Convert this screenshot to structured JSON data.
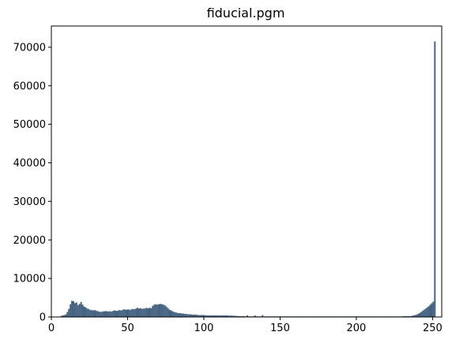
{
  "chart_data": {
    "type": "bar",
    "title": "fiducial.pgm",
    "xlabel": "",
    "ylabel": "",
    "xlim": [
      0,
      256
    ],
    "ylim": [
      0,
      75500
    ],
    "bar_color": "#43617f",
    "grid": false,
    "x_ticks": [
      0,
      50,
      100,
      150,
      200,
      250
    ],
    "y_ticks": [
      0,
      10000,
      20000,
      30000,
      40000,
      50000,
      60000,
      70000
    ],
    "bin_width": 1,
    "bins": [
      [
        0,
        0
      ],
      [
        1,
        0
      ],
      [
        2,
        0
      ],
      [
        3,
        0
      ],
      [
        4,
        0
      ],
      [
        5,
        100
      ],
      [
        6,
        300
      ],
      [
        7,
        400
      ],
      [
        8,
        500
      ],
      [
        9,
        700
      ],
      [
        10,
        1300
      ],
      [
        11,
        2100
      ],
      [
        12,
        3300
      ],
      [
        13,
        4200
      ],
      [
        14,
        4100
      ],
      [
        15,
        3600
      ],
      [
        16,
        3800
      ],
      [
        17,
        3100
      ],
      [
        18,
        3400
      ],
      [
        19,
        3900
      ],
      [
        20,
        3200
      ],
      [
        21,
        2700
      ],
      [
        22,
        2500
      ],
      [
        23,
        2200
      ],
      [
        24,
        2100
      ],
      [
        25,
        1800
      ],
      [
        26,
        1800
      ],
      [
        27,
        1700
      ],
      [
        28,
        1800
      ],
      [
        29,
        1600
      ],
      [
        30,
        1500
      ],
      [
        31,
        1400
      ],
      [
        32,
        1300
      ],
      [
        33,
        1400
      ],
      [
        34,
        1500
      ],
      [
        35,
        1500
      ],
      [
        36,
        1500
      ],
      [
        37,
        1400
      ],
      [
        38,
        1500
      ],
      [
        39,
        1400
      ],
      [
        40,
        1600
      ],
      [
        41,
        1700
      ],
      [
        42,
        1600
      ],
      [
        43,
        1600
      ],
      [
        44,
        1800
      ],
      [
        45,
        1700
      ],
      [
        46,
        1800
      ],
      [
        47,
        2000
      ],
      [
        48,
        1900
      ],
      [
        49,
        1900
      ],
      [
        50,
        2000
      ],
      [
        51,
        1800
      ],
      [
        52,
        2000
      ],
      [
        53,
        2100
      ],
      [
        54,
        2000
      ],
      [
        55,
        2200
      ],
      [
        56,
        2400
      ],
      [
        57,
        2200
      ],
      [
        58,
        2300
      ],
      [
        59,
        2100
      ],
      [
        60,
        2200
      ],
      [
        61,
        2200
      ],
      [
        62,
        2400
      ],
      [
        63,
        2200
      ],
      [
        64,
        2400
      ],
      [
        65,
        2300
      ],
      [
        66,
        2900
      ],
      [
        67,
        3200
      ],
      [
        68,
        3300
      ],
      [
        69,
        3200
      ],
      [
        70,
        3300
      ],
      [
        71,
        3400
      ],
      [
        72,
        3300
      ],
      [
        73,
        3200
      ],
      [
        74,
        3000
      ],
      [
        75,
        2700
      ],
      [
        76,
        2300
      ],
      [
        77,
        1900
      ],
      [
        78,
        1700
      ],
      [
        79,
        1500
      ],
      [
        80,
        1300
      ],
      [
        81,
        1200
      ],
      [
        82,
        1100
      ],
      [
        83,
        1000
      ],
      [
        84,
        1000
      ],
      [
        85,
        900
      ],
      [
        86,
        900
      ],
      [
        87,
        800
      ],
      [
        88,
        800
      ],
      [
        89,
        700
      ],
      [
        90,
        700
      ],
      [
        91,
        700
      ],
      [
        92,
        600
      ],
      [
        93,
        600
      ],
      [
        94,
        600
      ],
      [
        95,
        600
      ],
      [
        96,
        500
      ],
      [
        97,
        500
      ],
      [
        98,
        500
      ],
      [
        99,
        500
      ],
      [
        100,
        500
      ],
      [
        101,
        400
      ],
      [
        102,
        400
      ],
      [
        103,
        400
      ],
      [
        104,
        400
      ],
      [
        105,
        400
      ],
      [
        106,
        400
      ],
      [
        107,
        400
      ],
      [
        108,
        400
      ],
      [
        109,
        400
      ],
      [
        110,
        400
      ],
      [
        111,
        400
      ],
      [
        112,
        400
      ],
      [
        113,
        400
      ],
      [
        114,
        400
      ],
      [
        115,
        400
      ],
      [
        116,
        350
      ],
      [
        117,
        350
      ],
      [
        118,
        350
      ],
      [
        119,
        300
      ],
      [
        120,
        300
      ],
      [
        121,
        250
      ],
      [
        122,
        250
      ],
      [
        123,
        200
      ],
      [
        124,
        200
      ],
      [
        125,
        200
      ],
      [
        126,
        200
      ],
      [
        127,
        150
      ],
      [
        128,
        400
      ],
      [
        129,
        150
      ],
      [
        130,
        150
      ],
      [
        131,
        150
      ],
      [
        132,
        150
      ],
      [
        133,
        400
      ],
      [
        134,
        150
      ],
      [
        135,
        150
      ],
      [
        136,
        150
      ],
      [
        137,
        150
      ],
      [
        138,
        500
      ],
      [
        139,
        150
      ],
      [
        140,
        150
      ],
      [
        141,
        150
      ],
      [
        142,
        150
      ],
      [
        143,
        150
      ],
      [
        144,
        150
      ],
      [
        145,
        150
      ],
      [
        146,
        150
      ],
      [
        147,
        150
      ],
      [
        148,
        150
      ],
      [
        149,
        150
      ],
      [
        150,
        150
      ],
      [
        151,
        150
      ],
      [
        152,
        150
      ],
      [
        153,
        150
      ],
      [
        154,
        150
      ],
      [
        155,
        150
      ],
      [
        156,
        150
      ],
      [
        157,
        150
      ],
      [
        158,
        150
      ],
      [
        159,
        150
      ],
      [
        160,
        150
      ],
      [
        161,
        150
      ],
      [
        162,
        150
      ],
      [
        163,
        150
      ],
      [
        164,
        150
      ],
      [
        165,
        150
      ],
      [
        166,
        150
      ],
      [
        167,
        150
      ],
      [
        168,
        150
      ],
      [
        169,
        150
      ],
      [
        170,
        150
      ],
      [
        171,
        150
      ],
      [
        172,
        150
      ],
      [
        173,
        150
      ],
      [
        174,
        150
      ],
      [
        175,
        150
      ],
      [
        176,
        150
      ],
      [
        177,
        150
      ],
      [
        178,
        150
      ],
      [
        179,
        150
      ],
      [
        180,
        150
      ],
      [
        181,
        150
      ],
      [
        182,
        150
      ],
      [
        183,
        150
      ],
      [
        184,
        150
      ],
      [
        185,
        150
      ],
      [
        186,
        150
      ],
      [
        187,
        150
      ],
      [
        188,
        150
      ],
      [
        189,
        150
      ],
      [
        190,
        150
      ],
      [
        191,
        150
      ],
      [
        192,
        150
      ],
      [
        193,
        150
      ],
      [
        194,
        150
      ],
      [
        195,
        150
      ],
      [
        196,
        150
      ],
      [
        197,
        150
      ],
      [
        198,
        150
      ],
      [
        199,
        150
      ],
      [
        200,
        150
      ],
      [
        201,
        150
      ],
      [
        202,
        150
      ],
      [
        203,
        150
      ],
      [
        204,
        150
      ],
      [
        205,
        150
      ],
      [
        206,
        150
      ],
      [
        207,
        150
      ],
      [
        208,
        150
      ],
      [
        209,
        150
      ],
      [
        210,
        150
      ],
      [
        211,
        150
      ],
      [
        212,
        150
      ],
      [
        213,
        150
      ],
      [
        214,
        150
      ],
      [
        215,
        150
      ],
      [
        216,
        150
      ],
      [
        217,
        150
      ],
      [
        218,
        150
      ],
      [
        219,
        150
      ],
      [
        220,
        150
      ],
      [
        221,
        150
      ],
      [
        222,
        150
      ],
      [
        223,
        150
      ],
      [
        224,
        150
      ],
      [
        225,
        150
      ],
      [
        226,
        150
      ],
      [
        227,
        150
      ],
      [
        228,
        150
      ],
      [
        229,
        150
      ],
      [
        230,
        200
      ],
      [
        231,
        200
      ],
      [
        232,
        200
      ],
      [
        233,
        200
      ],
      [
        234,
        200
      ],
      [
        235,
        200
      ],
      [
        236,
        300
      ],
      [
        237,
        400
      ],
      [
        238,
        500
      ],
      [
        239,
        600
      ],
      [
        240,
        800
      ],
      [
        241,
        1000
      ],
      [
        242,
        1300
      ],
      [
        243,
        1600
      ],
      [
        244,
        1900
      ],
      [
        245,
        2200
      ],
      [
        246,
        2500
      ],
      [
        247,
        2800
      ],
      [
        248,
        3200
      ],
      [
        249,
        3600
      ],
      [
        250,
        4000
      ],
      [
        251,
        71500
      ]
    ]
  }
}
